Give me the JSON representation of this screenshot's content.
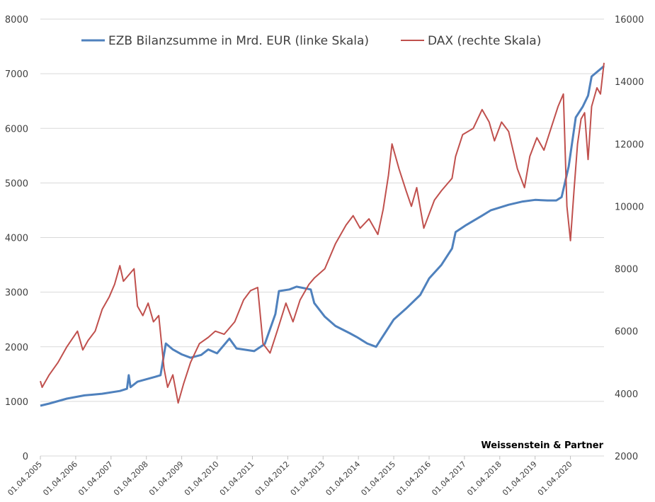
{
  "chart_data": {
    "type": "line",
    "title": "",
    "credit": "Weissenstein & Partner",
    "legend_position": "top",
    "grid": "horizontal",
    "x_ticks": [
      "01.04.2005",
      "01.04.2006",
      "01.04.2007",
      "01.04.2008",
      "01.04.2009",
      "01.04.2010",
      "01.04.2011",
      "01.04.2012",
      "01.04.2013",
      "01.04.2014",
      "01.04.2015",
      "01.04.2016",
      "01.04.2017",
      "01.04.2018",
      "01.04.2019",
      "01.04.2020"
    ],
    "x_range": [
      2005.25,
      2021.2
    ],
    "y_left": {
      "ticks": [
        "0",
        "1000",
        "2000",
        "3000",
        "4000",
        "5000",
        "6000",
        "7000",
        "8000"
      ],
      "range": [
        0,
        8000
      ]
    },
    "y_right": {
      "ticks": [
        "2000",
        "4000",
        "6000",
        "8000",
        "10000",
        "12000",
        "14000",
        "16000"
      ],
      "range": [
        2000,
        16000
      ]
    },
    "series": [
      {
        "name": "EZB Bilanzsumme in Mrd. EUR (linke Skala)",
        "axis": "left",
        "color": "#4f81bd",
        "points": [
          [
            2005.25,
            920
          ],
          [
            2005.5,
            960
          ],
          [
            2006.0,
            1050
          ],
          [
            2006.5,
            1110
          ],
          [
            2007.0,
            1140
          ],
          [
            2007.5,
            1190
          ],
          [
            2007.7,
            1230
          ],
          [
            2007.75,
            1480
          ],
          [
            2007.8,
            1260
          ],
          [
            2008.0,
            1360
          ],
          [
            2008.5,
            1450
          ],
          [
            2008.65,
            1480
          ],
          [
            2008.8,
            2060
          ],
          [
            2009.0,
            1950
          ],
          [
            2009.25,
            1860
          ],
          [
            2009.5,
            1800
          ],
          [
            2009.8,
            1850
          ],
          [
            2010.0,
            1950
          ],
          [
            2010.25,
            1880
          ],
          [
            2010.6,
            2150
          ],
          [
            2010.8,
            1970
          ],
          [
            2011.0,
            1950
          ],
          [
            2011.3,
            1920
          ],
          [
            2011.6,
            2050
          ],
          [
            2011.9,
            2600
          ],
          [
            2012.0,
            3020
          ],
          [
            2012.3,
            3050
          ],
          [
            2012.5,
            3100
          ],
          [
            2012.9,
            3050
          ],
          [
            2013.0,
            2800
          ],
          [
            2013.3,
            2550
          ],
          [
            2013.6,
            2380
          ],
          [
            2014.0,
            2250
          ],
          [
            2014.2,
            2180
          ],
          [
            2014.5,
            2060
          ],
          [
            2014.75,
            2000
          ],
          [
            2014.9,
            2150
          ],
          [
            2015.0,
            2250
          ],
          [
            2015.25,
            2500
          ],
          [
            2015.6,
            2700
          ],
          [
            2016.0,
            2950
          ],
          [
            2016.25,
            3250
          ],
          [
            2016.6,
            3500
          ],
          [
            2016.9,
            3800
          ],
          [
            2017.0,
            4100
          ],
          [
            2017.3,
            4230
          ],
          [
            2017.75,
            4400
          ],
          [
            2018.0,
            4500
          ],
          [
            2018.5,
            4600
          ],
          [
            2018.9,
            4660
          ],
          [
            2019.25,
            4690
          ],
          [
            2019.6,
            4680
          ],
          [
            2019.85,
            4680
          ],
          [
            2020.0,
            4740
          ],
          [
            2020.2,
            5300
          ],
          [
            2020.4,
            6200
          ],
          [
            2020.6,
            6400
          ],
          [
            2020.75,
            6600
          ],
          [
            2020.85,
            6950
          ],
          [
            2021.2,
            7140
          ]
        ]
      },
      {
        "name": "DAX (rechte Skala)",
        "axis": "right",
        "color": "#c0504d",
        "points": [
          [
            2005.25,
            4400
          ],
          [
            2005.3,
            4200
          ],
          [
            2005.5,
            4600
          ],
          [
            2005.75,
            5000
          ],
          [
            2006.0,
            5500
          ],
          [
            2006.3,
            6000
          ],
          [
            2006.45,
            5400
          ],
          [
            2006.6,
            5700
          ],
          [
            2006.8,
            6000
          ],
          [
            2007.0,
            6700
          ],
          [
            2007.2,
            7100
          ],
          [
            2007.35,
            7500
          ],
          [
            2007.5,
            8100
          ],
          [
            2007.6,
            7600
          ],
          [
            2007.75,
            7800
          ],
          [
            2007.9,
            8000
          ],
          [
            2008.0,
            6800
          ],
          [
            2008.15,
            6500
          ],
          [
            2008.3,
            6900
          ],
          [
            2008.45,
            6300
          ],
          [
            2008.6,
            6500
          ],
          [
            2008.75,
            4800
          ],
          [
            2008.85,
            4200
          ],
          [
            2009.0,
            4600
          ],
          [
            2009.15,
            3700
          ],
          [
            2009.3,
            4300
          ],
          [
            2009.5,
            5000
          ],
          [
            2009.75,
            5600
          ],
          [
            2010.0,
            5800
          ],
          [
            2010.2,
            6000
          ],
          [
            2010.45,
            5900
          ],
          [
            2010.75,
            6300
          ],
          [
            2011.0,
            7000
          ],
          [
            2011.2,
            7300
          ],
          [
            2011.4,
            7400
          ],
          [
            2011.55,
            5600
          ],
          [
            2011.75,
            5300
          ],
          [
            2011.95,
            6000
          ],
          [
            2012.2,
            6900
          ],
          [
            2012.4,
            6300
          ],
          [
            2012.6,
            7000
          ],
          [
            2012.85,
            7500
          ],
          [
            2013.0,
            7700
          ],
          [
            2013.3,
            8000
          ],
          [
            2013.6,
            8800
          ],
          [
            2013.9,
            9400
          ],
          [
            2014.1,
            9700
          ],
          [
            2014.3,
            9300
          ],
          [
            2014.55,
            9600
          ],
          [
            2014.8,
            9100
          ],
          [
            2014.95,
            9900
          ],
          [
            2015.1,
            11000
          ],
          [
            2015.2,
            12000
          ],
          [
            2015.4,
            11200
          ],
          [
            2015.6,
            10500
          ],
          [
            2015.75,
            10000
          ],
          [
            2015.9,
            10600
          ],
          [
            2016.1,
            9300
          ],
          [
            2016.4,
            10200
          ],
          [
            2016.6,
            10500
          ],
          [
            2016.9,
            10900
          ],
          [
            2017.0,
            11600
          ],
          [
            2017.2,
            12300
          ],
          [
            2017.5,
            12500
          ],
          [
            2017.75,
            13100
          ],
          [
            2017.95,
            12700
          ],
          [
            2018.1,
            12100
          ],
          [
            2018.3,
            12700
          ],
          [
            2018.5,
            12400
          ],
          [
            2018.75,
            11200
          ],
          [
            2018.95,
            10600
          ],
          [
            2019.1,
            11600
          ],
          [
            2019.3,
            12200
          ],
          [
            2019.5,
            11800
          ],
          [
            2019.7,
            12500
          ],
          [
            2019.9,
            13200
          ],
          [
            2020.05,
            13600
          ],
          [
            2020.15,
            10000
          ],
          [
            2020.25,
            8900
          ],
          [
            2020.35,
            10500
          ],
          [
            2020.45,
            12000
          ],
          [
            2020.55,
            12800
          ],
          [
            2020.65,
            13000
          ],
          [
            2020.75,
            11500
          ],
          [
            2020.85,
            13200
          ],
          [
            2021.0,
            13800
          ],
          [
            2021.1,
            13600
          ],
          [
            2021.2,
            14600
          ]
        ]
      }
    ]
  }
}
